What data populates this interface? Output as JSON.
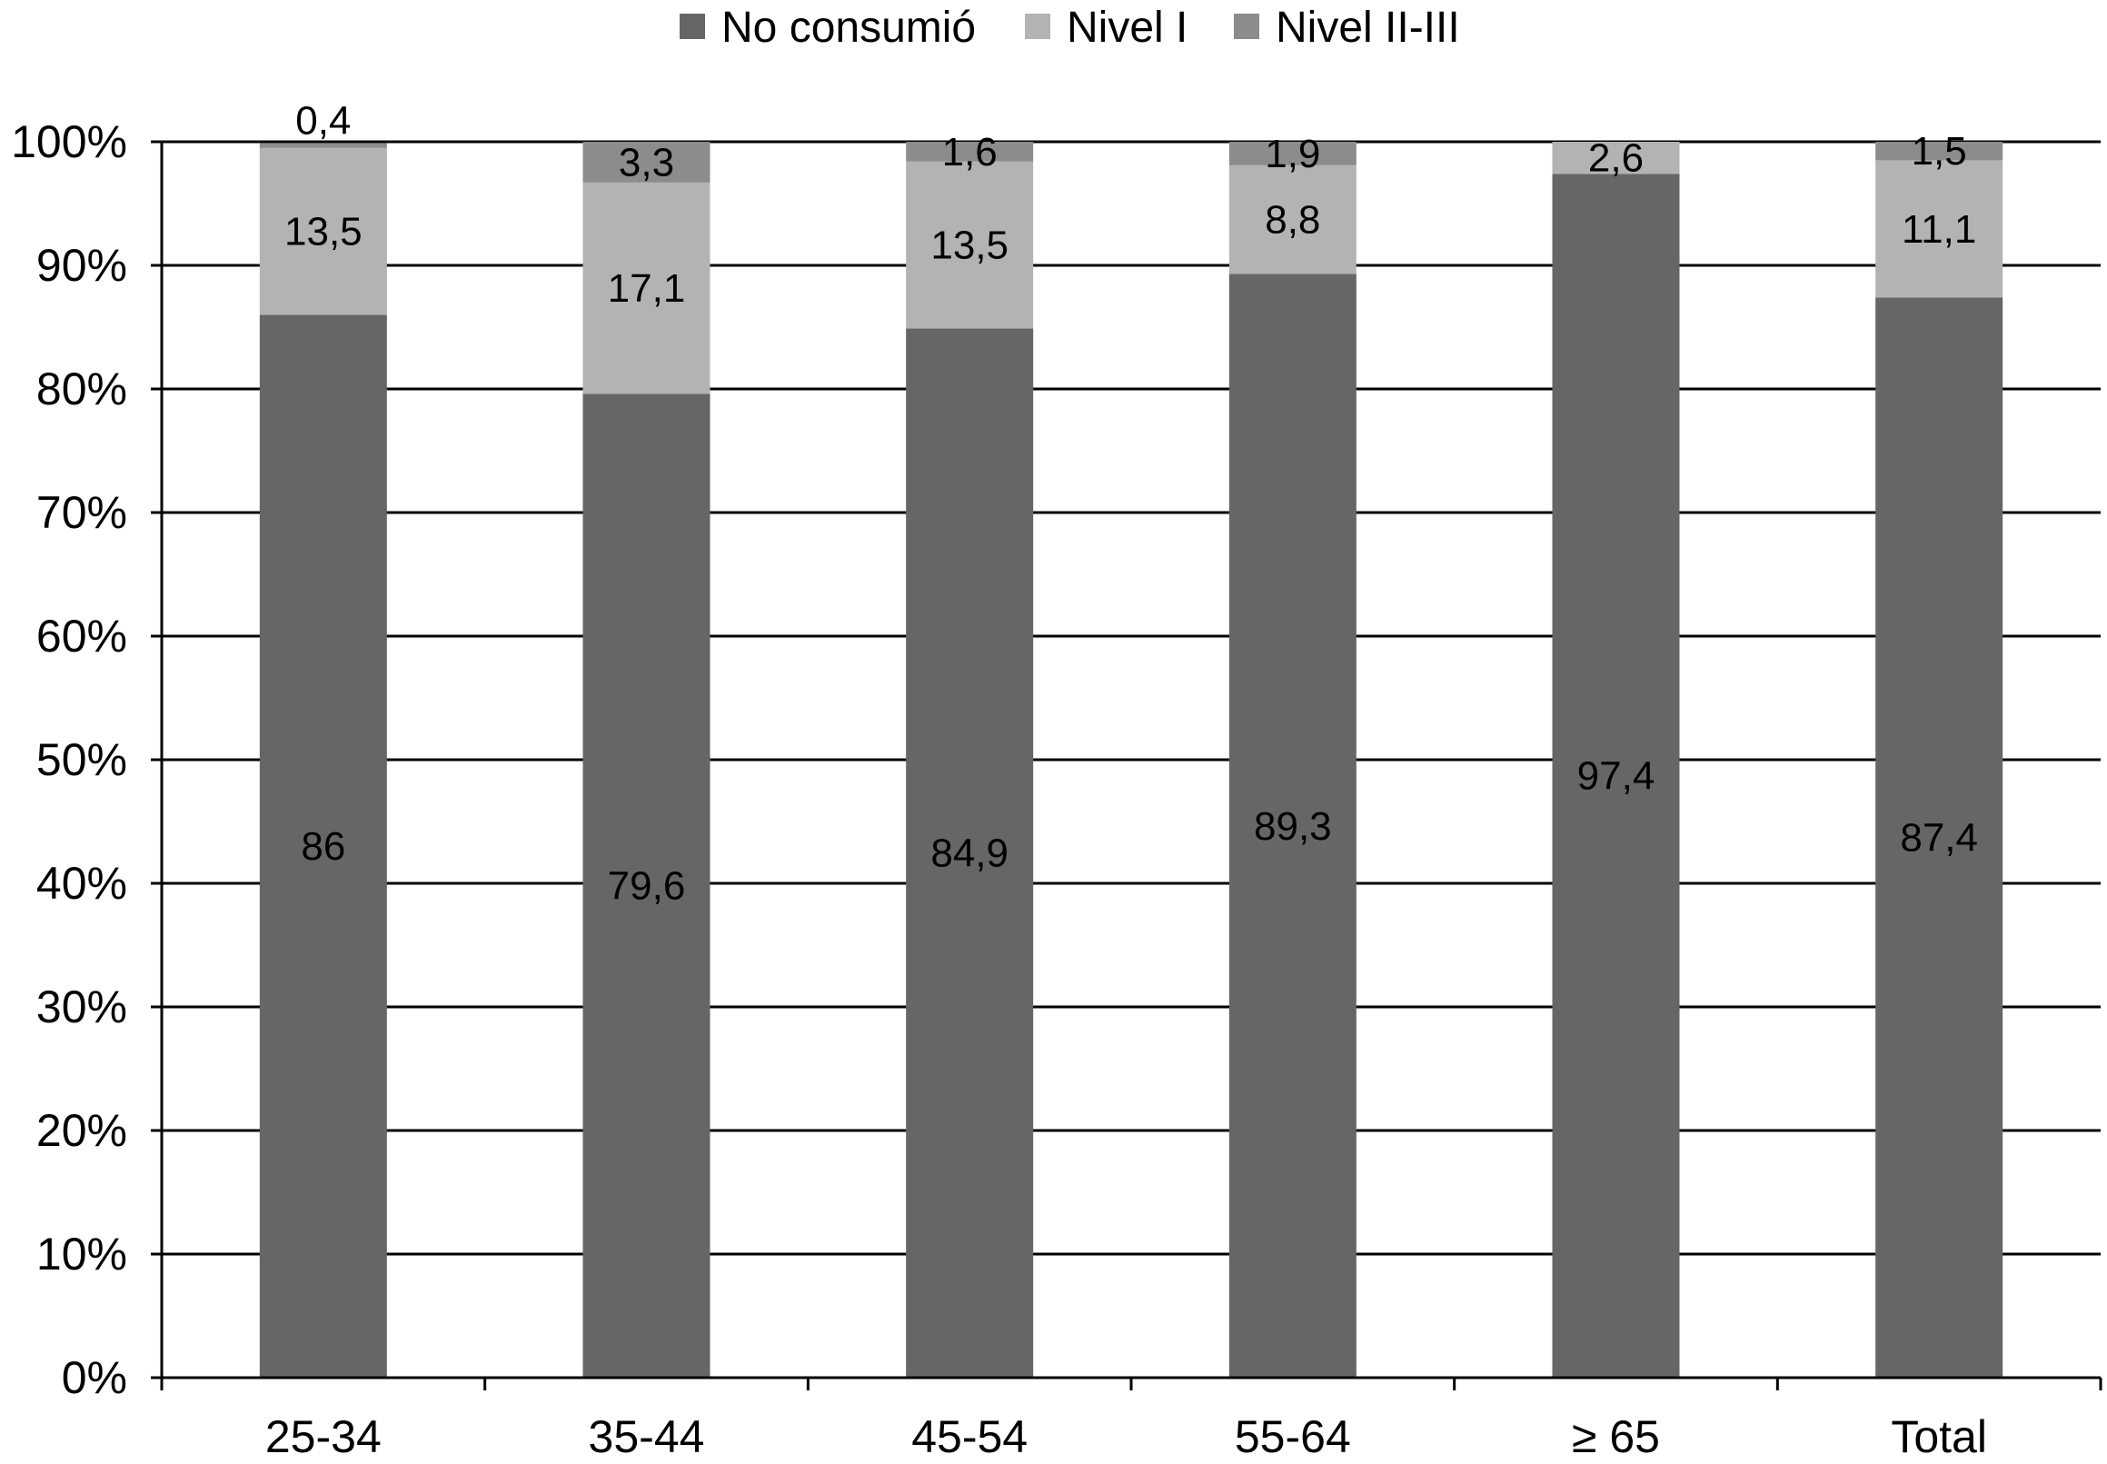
{
  "chart_data": {
    "type": "bar",
    "stacked": true,
    "categories": [
      "25-34",
      "35-44",
      "45-54",
      "55-64",
      "≥ 65",
      "Total"
    ],
    "series": [
      {
        "name": "No consumió",
        "color": "#666666",
        "values": [
          86,
          79.6,
          84.9,
          89.3,
          97.4,
          87.4
        ],
        "labels": [
          "86",
          "79,6",
          "84,9",
          "89,3",
          "97,4",
          "87,4"
        ]
      },
      {
        "name": "Nivel I",
        "color": "#b3b3b3",
        "values": [
          13.5,
          17.1,
          13.5,
          8.8,
          2.6,
          11.1
        ],
        "labels": [
          "13,5",
          "17,1",
          "13,5",
          "8,8",
          "2,6",
          "11,1"
        ]
      },
      {
        "name": "Nivel II-III",
        "color": "#8c8c8c",
        "values": [
          0.4,
          3.3,
          1.6,
          1.9,
          0,
          1.5
        ],
        "labels": [
          "0,4",
          "3,3",
          "1,6",
          "1,9",
          "",
          "1,5"
        ]
      }
    ],
    "yticks": [
      "0%",
      "10%",
      "20%",
      "30%",
      "40%",
      "50%",
      "60%",
      "70%",
      "80%",
      "90%",
      "100%"
    ],
    "ylim": [
      0,
      100
    ],
    "grid": true,
    "legend_position": "top-center",
    "title": "",
    "xlabel": "",
    "ylabel": ""
  }
}
